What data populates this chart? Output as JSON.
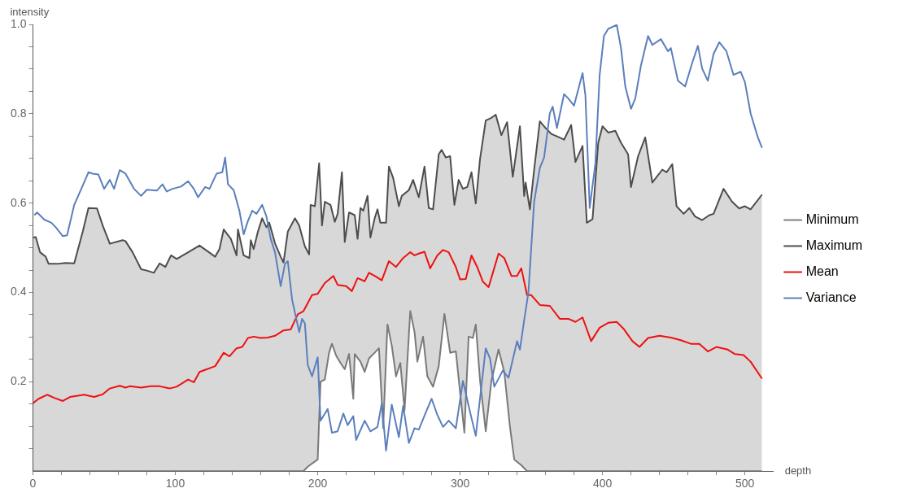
{
  "chart_data": {
    "type": "line",
    "xlabel": "depth",
    "ylabel": "intensity",
    "xlim": [
      0,
      520
    ],
    "ylim": [
      0,
      1
    ],
    "xticks": [
      0,
      {
        "value": 20,
        "label": null
      },
      {
        "value": 40,
        "label": null
      },
      {
        "value": 60,
        "label": null
      },
      {
        "value": 80,
        "label": null
      },
      100,
      {
        "value": 120,
        "label": null
      },
      {
        "value": 140,
        "label": null
      },
      {
        "value": 160,
        "label": null
      },
      {
        "value": 180,
        "label": null
      },
      200,
      {
        "value": 220,
        "label": null
      },
      {
        "value": 240,
        "label": null
      },
      {
        "value": 260,
        "label": null
      },
      {
        "value": 280,
        "label": null
      },
      300,
      {
        "value": 320,
        "label": null
      },
      {
        "value": 340,
        "label": null
      },
      {
        "value": 360,
        "label": null
      },
      {
        "value": 380,
        "label": null
      },
      400,
      {
        "value": 420,
        "label": null
      },
      {
        "value": 440,
        "label": null
      },
      {
        "value": 460,
        "label": null
      },
      {
        "value": 480,
        "label": null
      },
      500
    ],
    "yticks": [
      {
        "value": 0.05,
        "label": null
      },
      {
        "value": 0.1,
        "label": null
      },
      {
        "value": 0.15,
        "label": null
      },
      0.2,
      {
        "value": 0.25,
        "label": null
      },
      {
        "value": 0.3,
        "label": null
      },
      {
        "value": 0.35,
        "label": null
      },
      0.4,
      {
        "value": 0.45,
        "label": null
      },
      {
        "value": 0.5,
        "label": null
      },
      {
        "value": 0.55,
        "label": null
      },
      0.6,
      {
        "value": 0.65,
        "label": null
      },
      {
        "value": 0.7,
        "label": null
      },
      {
        "value": 0.75,
        "label": null
      },
      0.8,
      {
        "value": 0.85,
        "label": null
      },
      {
        "value": 0.9,
        "label": null
      },
      {
        "value": 0.95,
        "label": null
      },
      {
        "value": 1,
        "label": "1.0"
      }
    ],
    "grid": false,
    "legend": "right",
    "marker": "none",
    "line_style": "solid",
    "series": [
      {
        "name": "Minimum",
        "color": "#808080",
        "x": [
          0,
          190,
          193,
          200,
          202,
          205,
          208,
          210,
          213,
          216,
          219,
          222,
          225,
          226,
          230,
          233,
          236,
          240,
          243,
          246,
          249,
          252,
          255,
          258,
          261,
          265,
          268,
          270,
          274,
          277,
          281,
          285,
          289,
          293,
          297,
          300,
          303,
          306,
          309,
          311,
          314,
          318,
          322,
          327,
          331,
          335,
          338,
          343,
          347,
          512
        ],
        "values": [
          0,
          0,
          0.01,
          0.026,
          0.2,
          0.205,
          0.265,
          0.285,
          0.258,
          0.242,
          0.228,
          0.262,
          0.162,
          0.262,
          0.245,
          0.222,
          0.252,
          0.265,
          0.275,
          0.096,
          0.328,
          0.281,
          0.212,
          0.242,
          0.136,
          0.358,
          0.311,
          0.245,
          0.301,
          0.212,
          0.189,
          0.235,
          0.352,
          0.265,
          0.268,
          0.175,
          0.086,
          0.301,
          0.298,
          0.328,
          0.202,
          0.089,
          0.202,
          0.272,
          0.222,
          0.099,
          0.026,
          0.013,
          0,
          0
        ]
      },
      {
        "name": "Maximum",
        "color": "#4d4d4d",
        "type": "area",
        "x": [
          0,
          2,
          5,
          9,
          11,
          17,
          23,
          29,
          35,
          39,
          45,
          49,
          54,
          63,
          65,
          70,
          76,
          80,
          85,
          89,
          93,
          97,
          101,
          117,
          128,
          131,
          134,
          139,
          143,
          144,
          148,
          152,
          153,
          155,
          158,
          161,
          164,
          166,
          170,
          174,
          176,
          179,
          184,
          187,
          191,
          194,
          195,
          198,
          201,
          203,
          205,
          209,
          212,
          214,
          217,
          219,
          222,
          226,
          228,
          230,
          232,
          235,
          237,
          240,
          242,
          244,
          248,
          250,
          253,
          257,
          259,
          264,
          267,
          271,
          275,
          278,
          281,
          285,
          287,
          290,
          293,
          296,
          299,
          302,
          305,
          308,
          311,
          314,
          318,
          322,
          325,
          329,
          333,
          337,
          342,
          345,
          346,
          349,
          352,
          356,
          360,
          364,
          369,
          373,
          378,
          381,
          386,
          389,
          393,
          397,
          400,
          404,
          409,
          413,
          418,
          420,
          425,
          430,
          435,
          442,
          445,
          449,
          452,
          457,
          461,
          465,
          470,
          475,
          478,
          485,
          491,
          496,
          500,
          504,
          512
        ],
        "values": [
          0.523,
          0.524,
          0.49,
          0.48,
          0.464,
          0.464,
          0.466,
          0.465,
          0.536,
          0.589,
          0.588,
          0.55,
          0.509,
          0.517,
          0.515,
          0.49,
          0.452,
          0.449,
          0.444,
          0.465,
          0.457,
          0.483,
          0.475,
          0.505,
          0.48,
          0.497,
          0.541,
          0.52,
          0.483,
          0.541,
          0.483,
          0.477,
          0.517,
          0.497,
          0.536,
          0.566,
          0.546,
          0.556,
          0.51,
          0.48,
          0.467,
          0.536,
          0.566,
          0.55,
          0.503,
          0.485,
          0.596,
          0.593,
          0.689,
          0.55,
          0.603,
          0.596,
          0.558,
          0.576,
          0.669,
          0.513,
          0.579,
          0.573,
          0.52,
          0.589,
          0.583,
          0.616,
          0.523,
          0.566,
          0.586,
          0.556,
          0.556,
          0.682,
          0.656,
          0.593,
          0.616,
          0.629,
          0.652,
          0.613,
          0.682,
          0.589,
          0.586,
          0.709,
          0.719,
          0.702,
          0.705,
          0.596,
          0.652,
          0.632,
          0.636,
          0.669,
          0.599,
          0.699,
          0.785,
          0.791,
          0.798,
          0.752,
          0.781,
          0.659,
          0.772,
          0.616,
          0.646,
          0.586,
          0.675,
          0.783,
          0.768,
          0.755,
          0.748,
          0.742,
          0.775,
          0.692,
          0.728,
          0.556,
          0.564,
          0.735,
          0.772,
          0.758,
          0.762,
          0.735,
          0.709,
          0.636,
          0.705,
          0.747,
          0.646,
          0.675,
          0.669,
          0.687,
          0.593,
          0.576,
          0.589,
          0.57,
          0.562,
          0.573,
          0.576,
          0.632,
          0.603,
          0.588,
          0.593,
          0.586,
          0.619
        ]
      },
      {
        "name": "Mean",
        "color": "#ee1111",
        "x": [
          0,
          4,
          10,
          15,
          21,
          26,
          36,
          43,
          49,
          54,
          61,
          65,
          68,
          76,
          83,
          89,
          96,
          101,
          109,
          113,
          117,
          122,
          128,
          134,
          138,
          143,
          147,
          151,
          155,
          160,
          165,
          170,
          176,
          181,
          186,
          190,
          196,
          200,
          205,
          211,
          214,
          220,
          224,
          228,
          233,
          236,
          240,
          245,
          250,
          255,
          260,
          265,
          268,
          271,
          275,
          279,
          284,
          288,
          292,
          297,
          300,
          304,
          308,
          312,
          316,
          320,
          323,
          327,
          331,
          336,
          340,
          343,
          347,
          350,
          356,
          363,
          370,
          376,
          381,
          386,
          392,
          398,
          404,
          410,
          415,
          421,
          426,
          432,
          440,
          448,
          455,
          462,
          468,
          474,
          480,
          488,
          493,
          499,
          504,
          512
        ],
        "values": [
          0.152,
          0.162,
          0.171,
          0.164,
          0.157,
          0.166,
          0.171,
          0.166,
          0.172,
          0.185,
          0.191,
          0.187,
          0.19,
          0.187,
          0.19,
          0.19,
          0.185,
          0.189,
          0.205,
          0.199,
          0.222,
          0.228,
          0.235,
          0.265,
          0.257,
          0.275,
          0.278,
          0.298,
          0.301,
          0.298,
          0.299,
          0.303,
          0.315,
          0.317,
          0.351,
          0.358,
          0.394,
          0.397,
          0.421,
          0.437,
          0.417,
          0.414,
          0.403,
          0.432,
          0.425,
          0.444,
          0.437,
          0.427,
          0.47,
          0.457,
          0.477,
          0.49,
          0.483,
          0.487,
          0.491,
          0.454,
          0.483,
          0.495,
          0.49,
          0.457,
          0.429,
          0.43,
          0.483,
          0.457,
          0.424,
          0.412,
          0.444,
          0.487,
          0.477,
          0.437,
          0.437,
          0.454,
          0.394,
          0.394,
          0.372,
          0.37,
          0.341,
          0.341,
          0.334,
          0.344,
          0.291,
          0.321,
          0.332,
          0.334,
          0.318,
          0.291,
          0.278,
          0.298,
          0.303,
          0.299,
          0.293,
          0.285,
          0.285,
          0.268,
          0.278,
          0.272,
          0.262,
          0.26,
          0.245,
          0.207
        ]
      },
      {
        "name": "Variance",
        "color": "#5b7fbd",
        "x": [
          1,
          3,
          8,
          13,
          16,
          21,
          24,
          29,
          34,
          39,
          42,
          46,
          50,
          54,
          57,
          61,
          65,
          71,
          76,
          80,
          87,
          91,
          94,
          98,
          104,
          109,
          113,
          116,
          121,
          124,
          129,
          133,
          135,
          137,
          141,
          145,
          148,
          151,
          154,
          157,
          161,
          164,
          167,
          170,
          174,
          177,
          179,
          182,
          187,
          189,
          191,
          193,
          196,
          200,
          202,
          207,
          210,
          214,
          218,
          221,
          225,
          227,
          233,
          237,
          242,
          245,
          248,
          252,
          257,
          260,
          264,
          268,
          271,
          276,
          280,
          284,
          288,
          292,
          297,
          302,
          307,
          311,
          318,
          321,
          324,
          330,
          334,
          340,
          342,
          345,
          348,
          352,
          356,
          359,
          363,
          365,
          368,
          373,
          376,
          380,
          386,
          388,
          391,
          395,
          398,
          401,
          404,
          410,
          413,
          416,
          420,
          423,
          427,
          432,
          435,
          441,
          446,
          448,
          453,
          458,
          463,
          467,
          470,
          474,
          478,
          482,
          487,
          492,
          497,
          500,
          504,
          509,
          512
        ],
        "values": [
          0.573,
          0.579,
          0.563,
          0.556,
          0.546,
          0.526,
          0.528,
          0.596,
          0.632,
          0.669,
          0.666,
          0.664,
          0.632,
          0.652,
          0.632,
          0.674,
          0.666,
          0.632,
          0.616,
          0.63,
          0.628,
          0.642,
          0.626,
          0.632,
          0.637,
          0.649,
          0.632,
          0.613,
          0.636,
          0.632,
          0.666,
          0.669,
          0.702,
          0.642,
          0.629,
          0.583,
          0.53,
          0.56,
          0.583,
          0.576,
          0.596,
          0.57,
          0.52,
          0.49,
          0.414,
          0.464,
          0.47,
          0.384,
          0.311,
          0.341,
          0.331,
          0.238,
          0.212,
          0.255,
          0.113,
          0.139,
          0.086,
          0.089,
          0.129,
          0.103,
          0.123,
          0.07,
          0.113,
          0.089,
          0.099,
          0.152,
          0.046,
          0.149,
          0.076,
          0.146,
          0.063,
          0.096,
          0.093,
          0.132,
          0.162,
          0.126,
          0.099,
          0.113,
          0.096,
          0.202,
          0.132,
          0.079,
          0.275,
          0.252,
          0.189,
          0.225,
          0.209,
          0.291,
          0.272,
          0.338,
          0.401,
          0.603,
          0.679,
          0.702,
          0.801,
          0.816,
          0.768,
          0.844,
          0.834,
          0.818,
          0.891,
          0.841,
          0.589,
          0.689,
          0.887,
          0.974,
          0.99,
          0.999,
          0.947,
          0.861,
          0.811,
          0.834,
          0.908,
          0.974,
          0.954,
          0.967,
          0.94,
          0.947,
          0.874,
          0.861,
          0.914,
          0.952,
          0.901,
          0.874,
          0.934,
          0.96,
          0.94,
          0.887,
          0.894,
          0.871,
          0.801,
          0.748,
          0.724
        ]
      }
    ]
  }
}
